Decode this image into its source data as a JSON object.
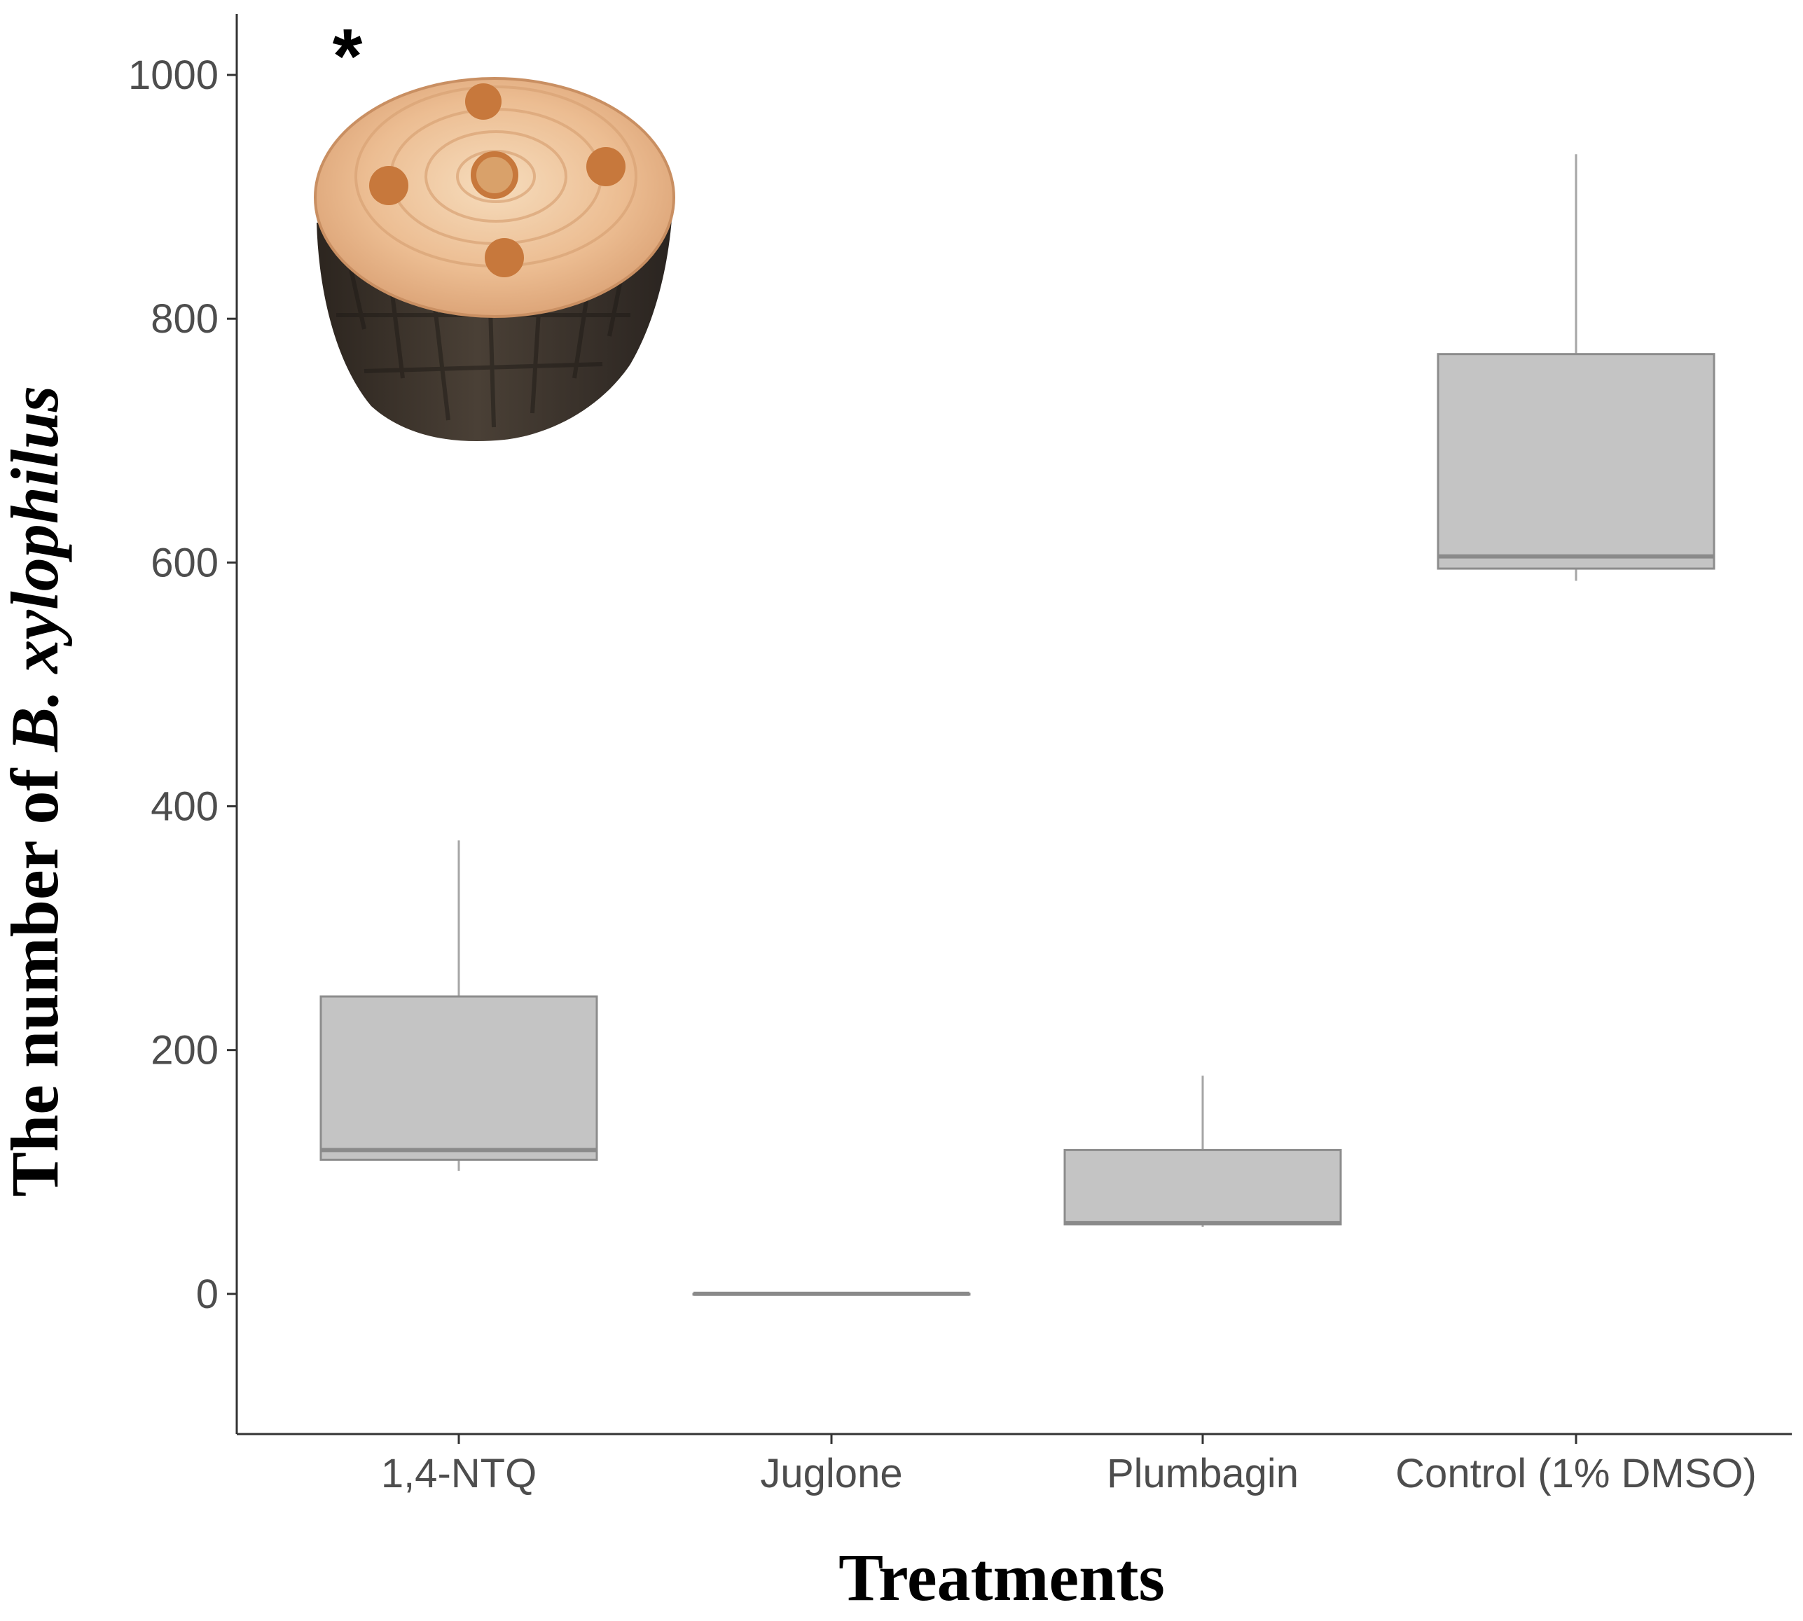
{
  "chart_data": {
    "type": "boxplot",
    "title": "",
    "xlabel": "Treatments",
    "ylabel": {
      "prefix": "The number of ",
      "italic": "B. xylophilus"
    },
    "ylim": [
      -115,
      1050
    ],
    "yticks": [
      0,
      200,
      400,
      600,
      800,
      1000
    ],
    "categories": [
      "1,4-NTQ",
      "Juglone",
      "Plumbagin",
      "Control (1% DMSO)"
    ],
    "series": [
      {
        "name": "1,4-NTQ",
        "min": 101,
        "q1": 110,
        "median": 118,
        "q3": 244,
        "max": 372
      },
      {
        "name": "Juglone",
        "min": 0,
        "q1": 0,
        "median": 0,
        "q3": 0,
        "max": 0
      },
      {
        "name": "Plumbagin",
        "min": 55,
        "q1": 57,
        "median": 58,
        "q3": 118,
        "max": 179
      },
      {
        "name": "Control (1% DMSO)",
        "min": 585,
        "q1": 595,
        "median": 605,
        "q3": 771,
        "max": 935
      }
    ],
    "annotation": "*",
    "inset_image": "pine-wood-disc-with-five-holes",
    "colors": {
      "box_fill": "#c4c4c4",
      "box_stroke": "#8c8c8c",
      "median": "#8a8a8a",
      "whisker": "#a6a6a6",
      "axis": "#333333",
      "wood_top": "#e9b98c",
      "bark": "#3a3128",
      "hole": "#d58a4a"
    }
  }
}
